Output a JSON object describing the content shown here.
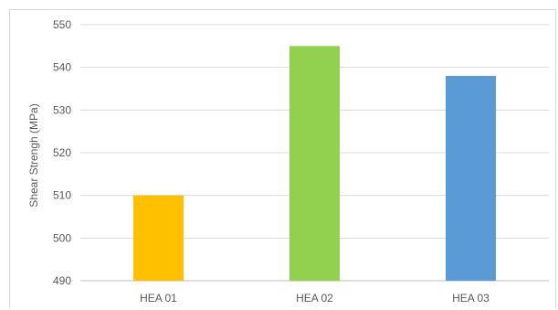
{
  "chart_data": {
    "type": "bar",
    "title": "",
    "xlabel": "",
    "ylabel": "Shear Strengh (MPa)",
    "categories": [
      "HEA 01",
      "HEA 02",
      "HEA 03"
    ],
    "values": [
      510,
      545,
      538
    ],
    "colors": [
      "#ffc000",
      "#92d050",
      "#5b9bd5"
    ],
    "ylim": [
      490,
      550
    ],
    "yticks": [
      490,
      500,
      510,
      520,
      530,
      540,
      550
    ],
    "grid": true,
    "legend": "none"
  }
}
